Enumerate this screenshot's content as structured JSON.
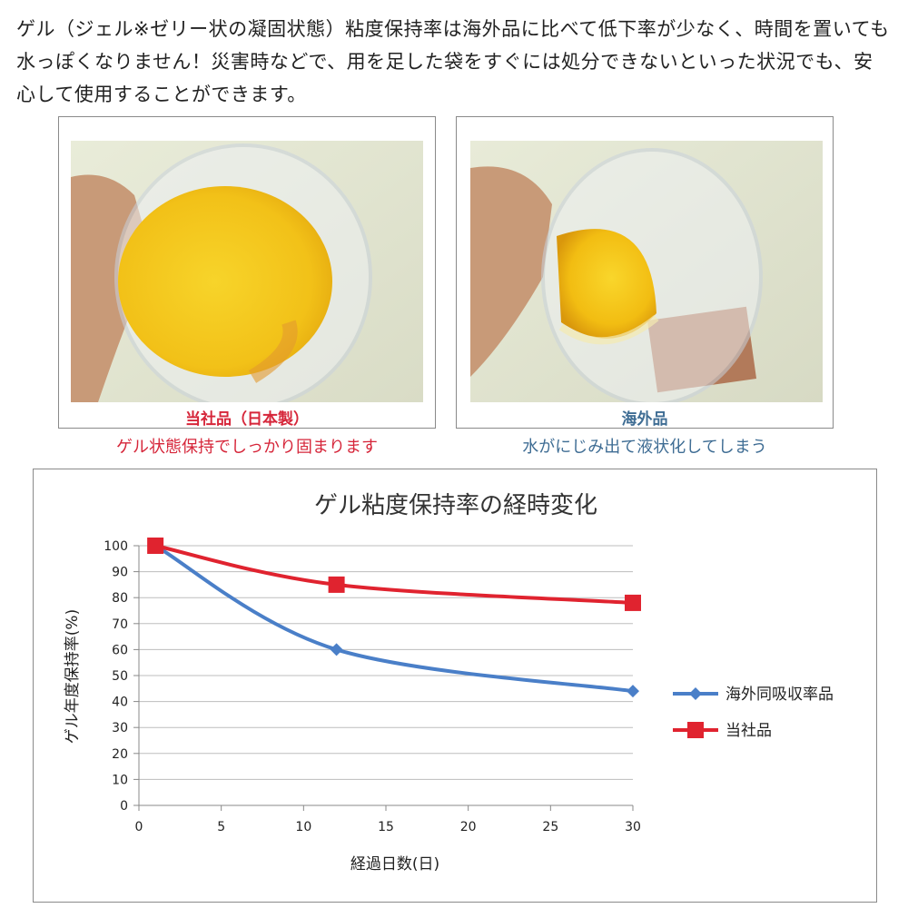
{
  "intro_text": "ゲル（ジェル※ゼリー状の凝固状態）粘度保持率は海外品に比べて低下率が少なく、時間を置いても水っぽくなりません！災害時などで、用を足した袋をすぐには処分できないといった状況でも、安心して使用することができます。",
  "photos": {
    "left": {
      "label": "当社品（日本製）",
      "caption": "ゲル状態保持でしっかり固まります"
    },
    "right": {
      "label": "海外品",
      "caption": "水がにじみ出て液状化してしまう"
    }
  },
  "colors": {
    "accent_red": "#e0232f",
    "series_blue": "#4a7fc8",
    "label_blue": "#3f6d94"
  },
  "chart_data": {
    "type": "line",
    "title": "ゲル粘度保持率の経時変化",
    "xlabel": "経過日数(日)",
    "ylabel": "ゲル年度保持率(%)",
    "xlim": [
      0,
      30
    ],
    "ylim": [
      0,
      100
    ],
    "xticks": [
      0,
      5,
      10,
      15,
      20,
      25,
      30
    ],
    "yticks": [
      0,
      10,
      20,
      30,
      40,
      50,
      60,
      70,
      80,
      90,
      100
    ],
    "grid": true,
    "legend_position": "right",
    "series": [
      {
        "name": "海外同吸収率品",
        "marker": "diamond",
        "color": "#4a7fc8",
        "x": [
          1,
          12,
          30
        ],
        "y": [
          100,
          60,
          44
        ]
      },
      {
        "name": "当社品",
        "marker": "square",
        "color": "#e0232f",
        "x": [
          1,
          12,
          30
        ],
        "y": [
          100,
          85,
          78
        ]
      }
    ]
  }
}
